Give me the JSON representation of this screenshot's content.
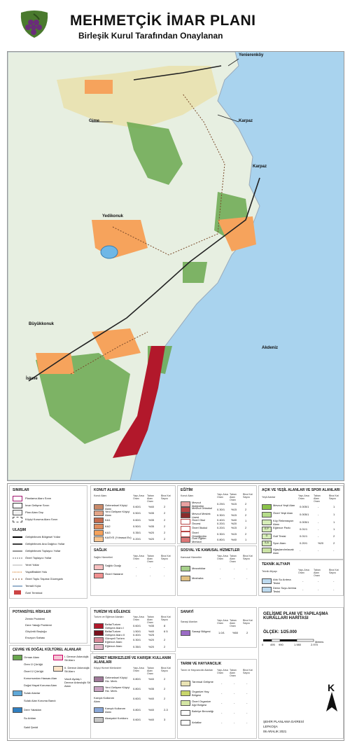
{
  "header": {
    "title": "MEHMETÇİK İMAR PLANI",
    "subtitle": "Birleşik Kurul Tarafından Onaylanan"
  },
  "map": {
    "places": {
      "yenierenkoy": "Yenierenköy",
      "gime": "Gime",
      "karpaz1": "Karpaz",
      "karpaz2": "Karpaz",
      "yedikonuk": "Yedikonuk",
      "buyukkonuk": "Büyükkonuk",
      "akdeniz": "Akdeniz",
      "iskele": "İskele"
    },
    "colors": {
      "sea": "#a9d3ee",
      "land": "#e7efe1",
      "forest": "#6aa84f",
      "tourism": "#b2182b",
      "housing": "#f6a35c",
      "agri": "#e9e3b4",
      "road": "#222222"
    }
  },
  "legend": {
    "sinirlar": {
      "title": "SINIRLAR",
      "items": [
        "Planlama Alanı Sınırı",
        "İmar Gelişme Sınırı",
        "Plan Alanı Dışı",
        "Köyiçi Koruma Alanı Sınırı"
      ]
    },
    "ulasim": {
      "title": "ULAŞIM",
      "items": [
        "Geliştirilecek Bölgesel Yollar",
        "Geliştirilecek Ana Dağıtıcı Yollar",
        "Geliştirilecek Toplayıcı Yollar",
        "Önerl Toplayıcı Yollar",
        "Yerel Yollar",
        "Yaya/Bisiklet Yolu",
        "Önerl Toplu Taşıma Güzergahı",
        "Temsili Kıyla",
        "Özel Terminal"
      ]
    },
    "potansiyel": {
      "title": "POTANSİYEL RİSKLER",
      "items": [
        "Zemin Problemi",
        "Dere Yatağı Problemi",
        "Göçüntü Boşluğu",
        "Erozyon Sahası"
      ]
    },
    "cevre": {
      "title": "ÇEVRE VE DOĞAL KÜLTÜREL ALANLAR",
      "left": [
        "Orman Alanı",
        "Ören Ü Çürüğü",
        "Önerl Ü Çürüğü",
        "Konumundan Hassas Alan",
        "Doğal Hayat Koruma Alanı",
        "Sulak Alanlar",
        "Sulak Alan Koruma Bandı",
        "Dere Yatakları",
        "Su Arkları",
        "Sahil Şeridi"
      ],
      "right": [
        "I. Derece Arkeolojik Sit Alanı",
        "II. Derece Arkeolojik Sit Alanı",
        "Vasıfı Aydaş I. Derece Arkeolojik Sit Alanı"
      ]
    },
    "konut": {
      "title": "KONUT ALANLARI",
      "headers": [
        "Konut Alanı",
        "Yapı-Arsa Oranı",
        "Taban Alanı Oranı",
        "Bina Kat Sayısı"
      ],
      "rows": [
        [
          "Geleneksel Köyiçi Alanı",
          "0.60/1",
          "%40",
          "2"
        ],
        [
          "Yeni Gelişme Köyiçi Alanı",
          "0.50/1",
          "%35",
          "2"
        ],
        [
          "KA1",
          "0.60/1",
          "%35",
          "2"
        ],
        [
          "KA2",
          "0.50/1",
          "%35",
          "2"
        ],
        [
          "KA3",
          "0.35/1",
          "%20",
          "2"
        ],
        [
          "KASYE (Yıbrasal Ev)",
          "0.20/1",
          "%20",
          "2"
        ]
      ]
    },
    "saglik": {
      "title": "SAĞLIK",
      "headers": [
        "Sağlık Hizmetleri",
        "Yapı-Arsa Oranı",
        "Taban Alanı Oranı",
        "Bina Kat Sayısı"
      ],
      "rows": [
        [
          "Sağlık Ocağı",
          "-",
          "-",
          "-"
        ],
        [
          "Önerl Hastane",
          "-",
          "-",
          "-"
        ]
      ]
    },
    "turizm": {
      "title": "TURİZM VE EĞLENCE",
      "headers": [
        "Turizm ve Eğlence Alanları",
        "Yapı-Arsa Oranı",
        "Taban Alanı Oranı",
        "Bina Kat Sayısı"
      ],
      "rows": [
        [
          "Belta/Turizm Gelişme Alanı I",
          "0.60/1",
          "%35",
          "8"
        ],
        [
          "Belta/Turizm Gelişme Alanı II",
          "1.50/1 0.40/1",
          "%40 %25",
          "6 5"
        ],
        [
          "Gömçeli Turizm Eğlence Alanı",
          "0.30/1",
          "%20",
          "2"
        ],
        [
          "Eğlence Alanı",
          "0.35/1",
          "%20",
          "2"
        ]
      ]
    },
    "hizmet": {
      "title": "HİZMET MERKEZLERİ VE KARIŞIK KULLANIM ALANLARI",
      "headers": [
        "Köyiçi Hizmet Merkezleri",
        "Yapı-Arsa Oranı",
        "Taban Alanı Oranı",
        "Bina Kat Sayısı"
      ],
      "rows": [
        [
          "Geleneksel Köyiçi Hiz. Merk.",
          "0.80/1",
          "%40",
          "2"
        ],
        [
          "Yeni Gelişme Köyiçi Hiz. Merk.",
          "0.80/1",
          "%35",
          "2"
        ],
        [
          "Karışık Kullanım Alanı",
          "0.60/1",
          "%40",
          "2"
        ],
        [
          "Karışık Kullanım Alanı",
          "0.80/1",
          "%40",
          "2-3"
        ],
        [
          "Akaryakıt Koridoru",
          "0.60/1",
          "%40",
          "3"
        ]
      ]
    },
    "egitim": {
      "title": "EĞİTİM",
      "headers": [
        "Konut Alanı",
        "Yapı-Arsa Oranı",
        "Taban Alanı Oranı",
        "Bina Kat Sayısı"
      ],
      "rows": [
        [
          "Mevcut İlköğretim",
          "0.29/1",
          "%15",
          "2"
        ],
        [
          "Mevcut Ortaokul",
          "0.30/1",
          "%15",
          "2"
        ],
        [
          "Mevcut Meslek Lisesi",
          "0.30/1",
          "%15",
          "2"
        ],
        [
          "Önerl Okul Öncesi",
          "0.40/1 0.20/1",
          "%40 %20",
          "1"
        ],
        [
          "Önerl İlkokul",
          "0.20/1",
          "%15",
          "2"
        ],
        [
          "Önerl Ortaöğretim",
          "0.30/1",
          "%15",
          "2"
        ],
        [
          "Özel Eğitim Merkezi",
          "0.80/1",
          "%40",
          "1"
        ]
      ]
    },
    "sosyal": {
      "title": "SOSYAL VE KAMUSAL HİZMETLER",
      "headers": [
        "Kamusal Hizmetler",
        "Yapı-Arsa Oranı",
        "Taban Alanı Oranı",
        "Bina Kat Sayısı"
      ],
      "rows": [
        [
          "Mezarlıklar",
          "-",
          "-",
          "-"
        ],
        [
          "Mezbaha",
          "-",
          "-",
          "-"
        ]
      ]
    },
    "sanayi": {
      "title": "SANAYİ",
      "headers": [
        "Sanayi Alanları",
        "Yapı-Arsa Oranı",
        "Taban Alanı Oranı",
        "Bina Kat Sayısı"
      ],
      "rows": [
        [
          "Sanayi Bölgesi",
          "1.0/1",
          "%50",
          "2"
        ]
      ]
    },
    "tarim": {
      "title": "TARIM VE HAYVANCILIK",
      "headers": [
        "Tarım ve Hayvancılık Alanları",
        "Yapı-Arsa Oranı",
        "Taban Alanı Oranı",
        "Bina Kat Sayısı"
      ],
      "rows": [
        [
          "Tarımsal Gelişme",
          "-",
          "-",
          "-"
        ],
        [
          "Organize Hay. Bölgesi",
          "-",
          "-",
          "-"
        ],
        [
          "Önerl Organize Ağıl Bölgesi",
          "-",
          "-",
          "-"
        ],
        [
          "Bahriye Bevvalığı",
          "-",
          "-",
          "-"
        ],
        [
          "Arılatlar",
          "-",
          "-",
          "-"
        ]
      ]
    },
    "acik": {
      "title": "AÇIK VE YEŞİL ALANLAR VE SPOR ALANLARI",
      "headers": [
        "Yeşil Alanlar",
        "Yapı-Arsa Oranı",
        "Taban Alanı Oranı",
        "Bina Kat Sayısı"
      ],
      "rows": [
        [
          "Mevcut Yeşil Alan",
          "0.005/1",
          "-",
          "1"
        ],
        [
          "Önerl Yeşil Alan",
          "0.005/1",
          "-",
          "1"
        ],
        [
          "Köy Rekreasyon Alanı",
          "0.005/1",
          "-",
          "1"
        ],
        [
          "Eğlence Parkı",
          "0.01/1",
          "-",
          "1"
        ],
        [
          "Golf Tesisi",
          "0.01/1",
          "-",
          "2"
        ],
        [
          "Spor Alanı",
          "0.20/1",
          "%20",
          "2"
        ],
        [
          "Ağaçlandırılacak Alan",
          "-",
          "-",
          "-"
        ]
      ],
      "codes": [
        "",
        "",
        "",
        "E.P",
        "G",
        "S.A",
        ""
      ]
    },
    "teknik": {
      "title": "TEKNİK ALTYAPI",
      "headers": [
        "Teknik Altyapı",
        "Yapı-Arsa Oranı",
        "Taban Alanı Oranı",
        "Bina Kat Sayısı"
      ],
      "rows": [
        [
          "Atık Su Arıtma Tesisi",
          "-",
          "-",
          "-"
        ],
        [
          "Deniz Suyu Arıtma Tesisi",
          "-",
          "-",
          "-"
        ]
      ]
    },
    "harita": {
      "title": "GELİŞME PLANI VE YAPILAŞMA KURALLARI HARİTASI",
      "scale": "ÖLÇEK: 1/25.000",
      "ticks": [
        "0",
        "495",
        "990",
        "1.980",
        "2.970"
      ],
      "unit": "Meters",
      "north": "K",
      "office": "ŞEHİR PLANLAMA DAİRESİ",
      "city": "LEFKOŞA",
      "date": "06 ARALIK 2021"
    }
  }
}
